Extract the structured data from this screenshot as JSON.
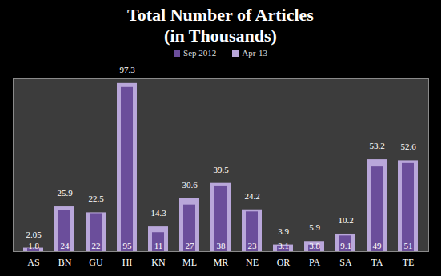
{
  "chart_data": {
    "type": "bar",
    "title": "Total Number of Articles (in Thousands)",
    "categories": [
      "AS",
      "BN",
      "GU",
      "HI",
      "KN",
      "ML",
      "MR",
      "NE",
      "OR",
      "PA",
      "SA",
      "TA",
      "TE"
    ],
    "series": [
      {
        "name": "Sep 2012",
        "color": "#6b4e9b",
        "values": [
          1.8,
          24,
          22,
          95,
          11,
          27,
          38,
          23,
          3.1,
          3.8,
          9.1,
          49,
          51
        ]
      },
      {
        "name": "Apr-13",
        "color": "#b9a7da",
        "values": [
          2.05,
          25.9,
          22.5,
          97.3,
          14.3,
          30.6,
          39.5,
          24.2,
          3.9,
          5.9,
          10.2,
          53.2,
          52.6
        ]
      }
    ],
    "ylim": [
      0,
      100
    ],
    "data_labels": true,
    "tick_labels": "x",
    "legend": "top"
  }
}
